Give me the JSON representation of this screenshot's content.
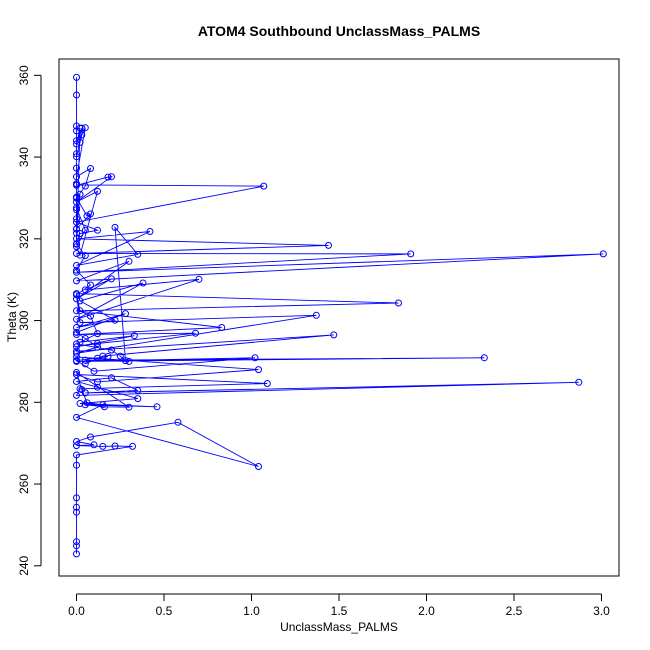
{
  "chart_data": {
    "type": "line",
    "title": "ATOM4 Southbound UnclassMass_PALMS",
    "xlabel": "UnclassMass_PALMS",
    "ylabel": "Theta (K)",
    "xlim": [
      -0.1,
      3.1
    ],
    "ylim": [
      237.5,
      364
    ],
    "x_ticks": [
      0.0,
      0.5,
      1.0,
      1.5,
      2.0,
      2.5,
      3.0
    ],
    "x_tick_labels": [
      "0.0",
      "0.5",
      "1.0",
      "1.5",
      "2.0",
      "2.5",
      "3.0"
    ],
    "y_ticks": [
      240,
      260,
      280,
      300,
      320,
      340,
      360
    ],
    "y_tick_labels": [
      "240",
      "260",
      "280",
      "300",
      "320",
      "340",
      "360"
    ],
    "series": [
      {
        "color": "#0000ff",
        "marker": "open-circle",
        "x": [
          0.0,
          0.0,
          0.0,
          0.0,
          0.0,
          0.0,
          0.0,
          0.0,
          0.0,
          0.0,
          0.0,
          0.0,
          0.0,
          0.0,
          0.02,
          0.0,
          0.03,
          0.02,
          0.0,
          0.03,
          0.05,
          0.0,
          0.08,
          0.05,
          0.0,
          0.06,
          0.08,
          0.0,
          0.02,
          0.0,
          0.05,
          0.0,
          0.02,
          0.12,
          0.0,
          0.2,
          0.18,
          0.0,
          0.0,
          1.07,
          0.0,
          0.12,
          0.02,
          0.0,
          0.05,
          0.0,
          0.08,
          0.0,
          0.02,
          0.08,
          0.12,
          0.0,
          0.2,
          0.25,
          0.28,
          0.22,
          0.35,
          0.0,
          0.42,
          0.0,
          1.44,
          0.0,
          1.91,
          0.0,
          3.01,
          0.0,
          0.3,
          0.0,
          0.2,
          0.05,
          0.7,
          0.0,
          0.38,
          0.02,
          0.22,
          0.0,
          0.28,
          0.0,
          0.05,
          0.12,
          0.0,
          1.37,
          0.02,
          0.0,
          1.84,
          0.0,
          0.83,
          0.0,
          0.68,
          0.12,
          0.0,
          0.33,
          0.02,
          0.0,
          1.47,
          0.15,
          0.05,
          0.12,
          0.18,
          0.0,
          0.1,
          1.02,
          0.0,
          2.33,
          0.05,
          0.3,
          0.0,
          1.04,
          0.12,
          0.0,
          1.09,
          0.02,
          0.0,
          2.87,
          0.05,
          0.35,
          0.2,
          0.0,
          0.12,
          0.35,
          0.02,
          0.46,
          0.05,
          0.16,
          0.3,
          0.0,
          0.03,
          0.06,
          0.15,
          0.0,
          1.04,
          0.58,
          0.08,
          0.0,
          0.1,
          0.0,
          0.15,
          0.22,
          0.32,
          0.0,
          0.0,
          0.0,
          0.0,
          0.0,
          0.0,
          0.0,
          0.0
        ],
        "y": [
          359.5,
          355.2,
          347.6,
          346.4,
          344.0,
          340.8,
          337.3,
          333.5,
          330.2,
          327.1,
          324.9,
          322.4,
          321.4,
          318.8,
          347.1,
          343.2,
          347.1,
          343.6,
          340.1,
          345.4,
          347.2,
          335.2,
          337.2,
          332.9,
          330.0,
          325.6,
          326.1,
          322.4,
          330.9,
          327.6,
          322.1,
          318.1,
          316.0,
          331.6,
          329.0,
          335.2,
          335.1,
          333.1,
          333.2,
          332.9,
          324.1,
          322.1,
          321.3,
          318.7,
          315.9,
          312.3,
          308.7,
          306.3,
          302.4,
          301.1,
          296.8,
          294.3,
          292.8,
          291.3,
          290.2,
          322.8,
          316.2,
          313.5,
          321.8,
          320.0,
          318.4,
          316.4,
          316.3,
          311.8,
          316.3,
          309.7,
          314.5,
          305.3,
          310.2,
          307.5,
          310.1,
          300.3,
          309.2,
          304.8,
          300.1,
          298.3,
          301.7,
          297.1,
          295.6,
          293.5,
          292.0,
          301.3,
          299.5,
          306.6,
          304.3,
          302.4,
          298.3,
          296.6,
          296.9,
          294.4,
          293.6,
          296.3,
          294.7,
          292.5,
          296.5,
          291.3,
          289.4,
          290.8,
          291.2,
          290.2,
          287.6,
          290.9,
          290.0,
          290.9,
          290.3,
          290.0,
          291.1,
          288.0,
          285.0,
          286.8,
          284.6,
          283.3,
          281.7,
          284.9,
          282.3,
          282.9,
          286.0,
          285.1,
          283.7,
          280.9,
          279.7,
          278.9,
          279.4,
          278.9,
          278.8,
          287.3,
          283.1,
          279.9,
          279.4,
          276.3,
          264.3,
          275.1,
          271.5,
          270.4,
          269.6,
          269.4,
          269.2,
          269.3,
          269.2,
          267.1,
          264.6,
          256.6,
          254.3,
          253.1,
          245.9,
          244.9,
          242.9
        ]
      }
    ]
  }
}
